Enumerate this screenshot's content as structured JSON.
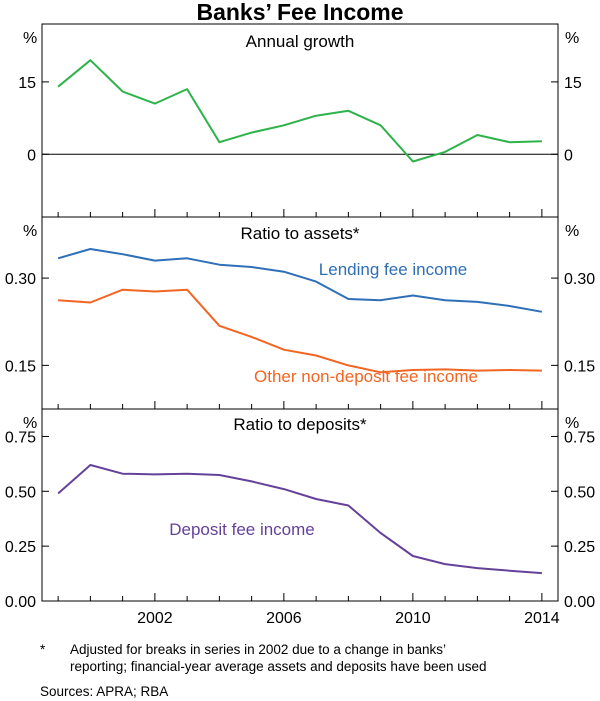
{
  "chart_data": {
    "type": "line",
    "title": "Banks’ Fee Income",
    "x_ticks": [
      "2002",
      "2006",
      "2010",
      "2014"
    ],
    "x_range": [
      1998.5,
      2014.5
    ],
    "panels": [
      {
        "title": "Annual growth",
        "unit": "%",
        "ylim": [
          -13,
          27
        ],
        "y_ticks": [
          "15",
          "0"
        ],
        "y_tick_values": [
          15,
          0
        ],
        "series": [
          {
            "name": "Annual growth",
            "label": "",
            "color": "#2db34a",
            "x": [
              1999,
              2000,
              2001,
              2002,
              2003,
              2004,
              2005,
              2006,
              2007,
              2008,
              2009,
              2010,
              2011,
              2012,
              2013,
              2014
            ],
            "values": [
              14,
              19.5,
              13,
              10.5,
              13.5,
              2.5,
              4.5,
              6,
              8,
              9,
              6,
              -1.5,
              0.5,
              4,
              2.5,
              2.7
            ]
          }
        ]
      },
      {
        "title": "Ratio to assets*",
        "unit": "%",
        "ylim": [
          0.075,
          0.405
        ],
        "y_ticks": [
          "0.30",
          "0.15"
        ],
        "y_tick_values": [
          0.3,
          0.15
        ],
        "series": [
          {
            "name": "Lending fee income",
            "label": "Lending fee income",
            "color": "#2e6fb7",
            "x": [
              1999,
              2000,
              2001,
              2002,
              2003,
              2004,
              2005,
              2006,
              2007,
              2008,
              2009,
              2010,
              2011,
              2012,
              2013,
              2014
            ],
            "values": [
              0.334,
              0.35,
              0.341,
              0.33,
              0.334,
              0.323,
              0.319,
              0.311,
              0.294,
              0.264,
              0.262,
              0.27,
              0.262,
              0.259,
              0.252,
              0.242
            ]
          },
          {
            "name": "Other non-deposit fee income",
            "label": "Other non-deposit fee income",
            "color": "#f26522",
            "x": [
              1999,
              2000,
              2001,
              2002,
              2003,
              2004,
              2005,
              2006,
              2007,
              2008,
              2009,
              2010,
              2011,
              2012,
              2013,
              2014
            ],
            "values": [
              0.262,
              0.258,
              0.28,
              0.277,
              0.28,
              0.218,
              0.199,
              0.177,
              0.167,
              0.15,
              0.138,
              0.142,
              0.143,
              0.141,
              0.142,
              0.141
            ]
          }
        ]
      },
      {
        "title": "Ratio to deposits*",
        "unit": "%",
        "ylim": [
          0,
          0.875
        ],
        "y_ticks": [
          "0.75",
          "0.50",
          "0.25",
          "0.00"
        ],
        "y_tick_values": [
          0.75,
          0.5,
          0.25,
          0
        ],
        "series": [
          {
            "name": "Deposit fee income",
            "label": "Deposit fee income",
            "color": "#65429a",
            "x": [
              1999,
              2000,
              2001,
              2002,
              2003,
              2004,
              2005,
              2006,
              2007,
              2008,
              2009,
              2010,
              2011,
              2012,
              2013,
              2014
            ],
            "values": [
              0.49,
              0.62,
              0.58,
              0.577,
              0.58,
              0.574,
              0.545,
              0.51,
              0.465,
              0.435,
              0.31,
              0.205,
              0.168,
              0.15,
              0.138,
              0.127
            ]
          }
        ]
      }
    ]
  },
  "footnote": {
    "marker": "*",
    "line1": "Adjusted for breaks in series in 2002 due to a change in banks’",
    "line2": "reporting; financial-year average assets and deposits have been used",
    "sources": "Sources:   APRA; RBA"
  }
}
